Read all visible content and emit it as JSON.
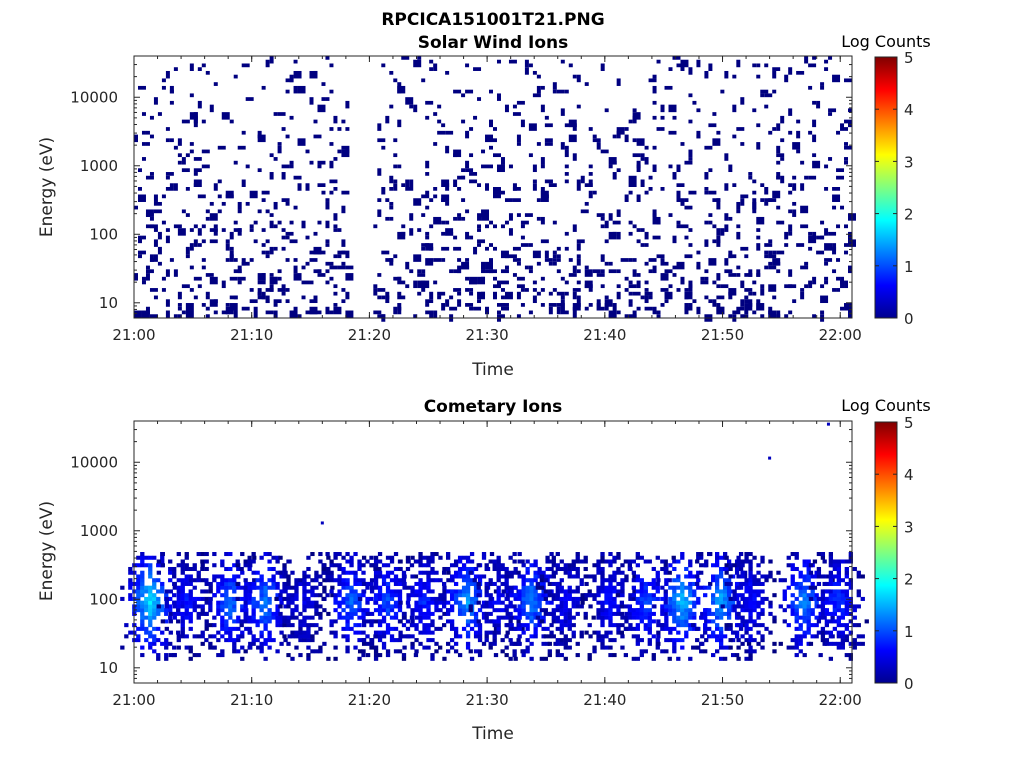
{
  "figure": {
    "title": "RPCICA151001T21.PNG"
  },
  "chart_data": [
    {
      "type": "heatmap",
      "title": "Solar Wind Ions",
      "xlabel": "Time",
      "ylabel": "Energy (eV)",
      "x_ticks": [
        "21:00",
        "21:10",
        "21:20",
        "21:30",
        "21:40",
        "21:50",
        "22:00"
      ],
      "xlim": [
        "21:00",
        "22:01"
      ],
      "y_scale": "log",
      "y_ticks": [
        10,
        100,
        1000,
        10000
      ],
      "y_tick_labels": [
        "10",
        "100",
        "1000",
        "10000"
      ],
      "ylim": [
        6,
        40000
      ],
      "colorbar": {
        "label": "Log Counts",
        "ticks": [
          "0",
          "1",
          "2",
          "3",
          "4",
          "5"
        ],
        "range": [
          0,
          5
        ],
        "colormap": "jet"
      },
      "description_of_values": "Sparse scattered counts at log value ~0 (dark blue) across all energies 6 eV - 30 keV, with a data gap between about 21:18 and 21:20.",
      "gap": [
        "21:18",
        "21:20"
      ],
      "typical_log_counts": 0
    },
    {
      "type": "heatmap",
      "title": "Cometary Ions",
      "xlabel": "Time",
      "ylabel": "Energy (eV)",
      "x_ticks": [
        "21:00",
        "21:10",
        "21:20",
        "21:30",
        "21:40",
        "21:50",
        "22:00"
      ],
      "xlim": [
        "21:00",
        "22:01"
      ],
      "y_scale": "log",
      "y_ticks": [
        10,
        100,
        1000,
        10000
      ],
      "y_tick_labels": [
        "10",
        "100",
        "1000",
        "10000"
      ],
      "ylim": [
        6,
        40000
      ],
      "colorbar": {
        "label": "Log Counts",
        "ticks": [
          "0",
          "1",
          "2",
          "3",
          "4",
          "5"
        ],
        "range": [
          0,
          5
        ],
        "colormap": "jet"
      },
      "bursts": [
        {
          "time_min": 1.2,
          "peak_log_counts": 1.8
        },
        {
          "time_min": 4.3,
          "peak_log_counts": 0.7
        },
        {
          "time_min": 8.0,
          "peak_log_counts": 1.2
        },
        {
          "time_min": 11.0,
          "peak_log_counts": 1.3
        },
        {
          "time_min": 14.3,
          "peak_log_counts": 0.5
        },
        {
          "time_min": 18.3,
          "peak_log_counts": 1.1
        },
        {
          "time_min": 21.4,
          "peak_log_counts": 1.0
        },
        {
          "time_min": 24.5,
          "peak_log_counts": 0.8
        },
        {
          "time_min": 28.2,
          "peak_log_counts": 1.4
        },
        {
          "time_min": 30.8,
          "peak_log_counts": 0.6
        },
        {
          "time_min": 33.6,
          "peak_log_counts": 1.3
        },
        {
          "time_min": 36.5,
          "peak_log_counts": 0.6
        },
        {
          "time_min": 40.3,
          "peak_log_counts": 0.7
        },
        {
          "time_min": 43.3,
          "peak_log_counts": 1.0
        },
        {
          "time_min": 46.4,
          "peak_log_counts": 1.6
        },
        {
          "time_min": 49.7,
          "peak_log_counts": 1.5
        },
        {
          "time_min": 52.2,
          "peak_log_counts": 0.7
        },
        {
          "time_min": 56.8,
          "peak_log_counts": 1.3
        },
        {
          "time_min": 59.7,
          "peak_log_counts": 0.9
        }
      ],
      "burst_energy_range_eV": [
        12,
        500
      ],
      "outliers": [
        {
          "time": "21:16",
          "energy_eV": 1300
        },
        {
          "time": "21:54",
          "energy_eV": 11500
        },
        {
          "time": "21:59",
          "energy_eV": 36000
        }
      ]
    }
  ]
}
